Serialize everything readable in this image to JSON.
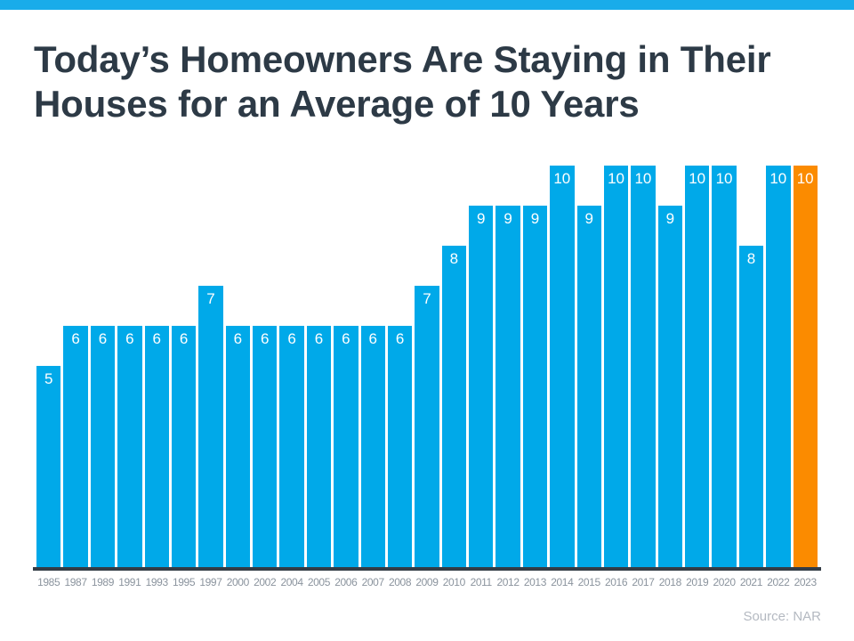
{
  "page": {
    "title_lines": [
      "Today’s Homeowners Are Staying in Their",
      "Houses for an Average of 10 Years"
    ],
    "source": "Source: NAR"
  },
  "colors": {
    "top_strip_blue": "#19ACEA",
    "bar_blue": "#00A9E9",
    "highlight_orange": "#FB8B00",
    "title_text": "#2D3A46",
    "axis_line": "#333C46",
    "tick_label": "#8B949E",
    "source_text": "#B4B9C1",
    "bar_value_text": "#FFFFFF"
  },
  "chart_data": {
    "type": "bar",
    "title": "Today’s Homeowners Are Staying in Their Houses for an Average of 10 Years",
    "xlabel": "",
    "ylabel": "",
    "categories": [
      "1985",
      "1987",
      "1989",
      "1991",
      "1993",
      "1995",
      "1997",
      "2000",
      "2002",
      "2004",
      "2005",
      "2006",
      "2007",
      "2008",
      "2009",
      "2010",
      "2011",
      "2012",
      "2013",
      "2014",
      "2015",
      "2016",
      "2017",
      "2018",
      "2019",
      "2020",
      "2021",
      "2022",
      "2023"
    ],
    "values": [
      5,
      6,
      6,
      6,
      6,
      6,
      7,
      6,
      6,
      6,
      6,
      6,
      6,
      6,
      7,
      8,
      9,
      9,
      9,
      10,
      9,
      10,
      10,
      9,
      10,
      10,
      8,
      10,
      10
    ],
    "value_labels_shown": true,
    "value_label_position": "inside-top",
    "highlight_category": "2023",
    "ylim": [
      0,
      10
    ],
    "grid": false,
    "legend": false,
    "annotation": "Source: NAR"
  }
}
